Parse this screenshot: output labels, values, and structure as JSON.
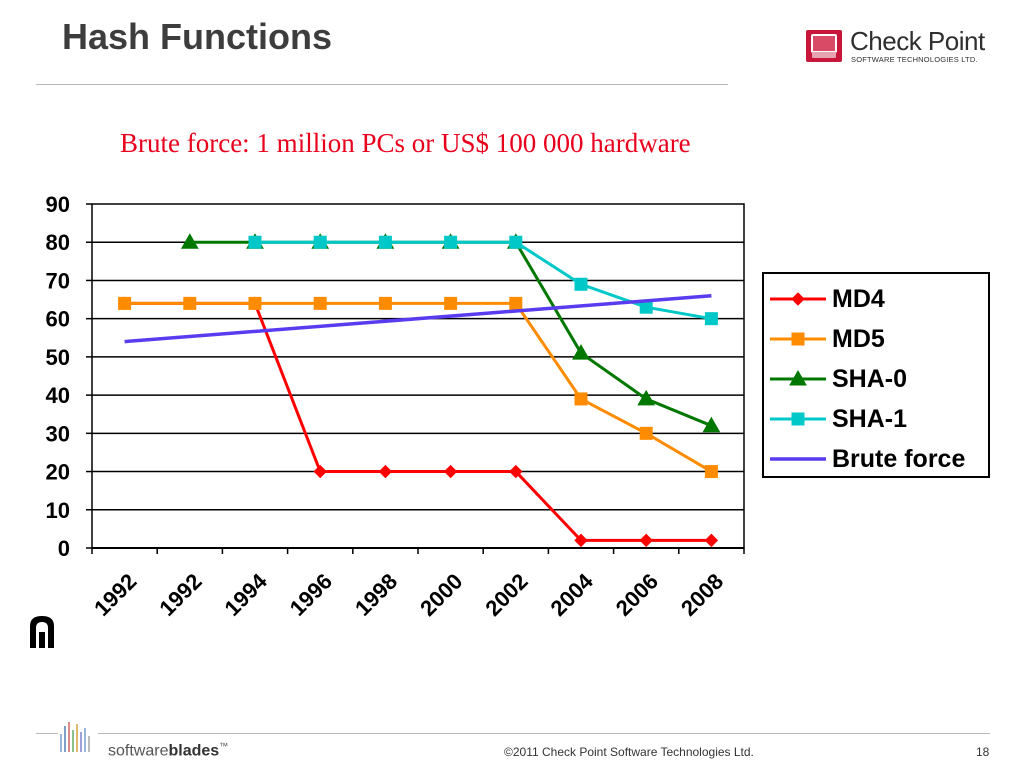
{
  "slide": {
    "title": "Hash Functions",
    "logo_name": "Check Point",
    "logo_tagline": "SOFTWARE TECHNOLOGIES LTD.",
    "footer_brand_prefix": "software",
    "footer_brand_bold": "blades",
    "footer_brand_tm": "™",
    "copyright": "©2011 Check Point Software Technologies Ltd.",
    "page_number": "18"
  },
  "chart_data": {
    "type": "line",
    "title": "Brute force: 1 million PCs or US$ 100 000 hardware",
    "xlabel": "",
    "ylabel": "",
    "ylim": [
      0,
      90
    ],
    "y_ticks": [
      "0",
      "10",
      "20",
      "30",
      "40",
      "50",
      "60",
      "70",
      "80",
      "90"
    ],
    "categories": [
      "1992",
      "1992",
      "1994",
      "1996",
      "1998",
      "2000",
      "2002",
      "2004",
      "2006",
      "2008"
    ],
    "grid": "horizontal",
    "legend_position": "right",
    "series": [
      {
        "name": "MD4",
        "color": "#ff0000",
        "marker": "diamond",
        "points": [
          [
            0.5,
            64
          ],
          [
            1.5,
            64
          ],
          [
            2.5,
            64
          ],
          [
            3.5,
            20
          ],
          [
            4.5,
            20
          ],
          [
            5.5,
            20
          ],
          [
            6.5,
            20
          ],
          [
            7.5,
            2
          ],
          [
            8.5,
            2
          ],
          [
            9.5,
            2
          ]
        ]
      },
      {
        "name": "MD5",
        "color": "#ff8c00",
        "marker": "square",
        "points": [
          [
            0.5,
            64
          ],
          [
            1.5,
            64
          ],
          [
            2.5,
            64
          ],
          [
            3.5,
            64
          ],
          [
            4.5,
            64
          ],
          [
            5.5,
            64
          ],
          [
            6.5,
            64
          ],
          [
            7.5,
            39
          ],
          [
            8.5,
            30
          ],
          [
            9.5,
            20
          ]
        ]
      },
      {
        "name": "SHA-0",
        "color": "#007800",
        "marker": "triangle",
        "points": [
          [
            1.5,
            80
          ],
          [
            2.5,
            80
          ],
          [
            3.5,
            80
          ],
          [
            4.5,
            80
          ],
          [
            5.5,
            80
          ],
          [
            6.5,
            80
          ],
          [
            7.5,
            51
          ],
          [
            8.5,
            39
          ],
          [
            9.5,
            32
          ]
        ]
      },
      {
        "name": "SHA-1",
        "color": "#00c8c8",
        "marker": "square",
        "points": [
          [
            2.5,
            80
          ],
          [
            3.5,
            80
          ],
          [
            4.5,
            80
          ],
          [
            5.5,
            80
          ],
          [
            6.5,
            80
          ],
          [
            7.5,
            69
          ],
          [
            8.5,
            63
          ],
          [
            9.5,
            60
          ]
        ]
      },
      {
        "name": "Brute force",
        "color": "#5a3cf0",
        "marker": "none",
        "points": [
          [
            0.5,
            54
          ],
          [
            9.5,
            66
          ]
        ]
      }
    ]
  }
}
